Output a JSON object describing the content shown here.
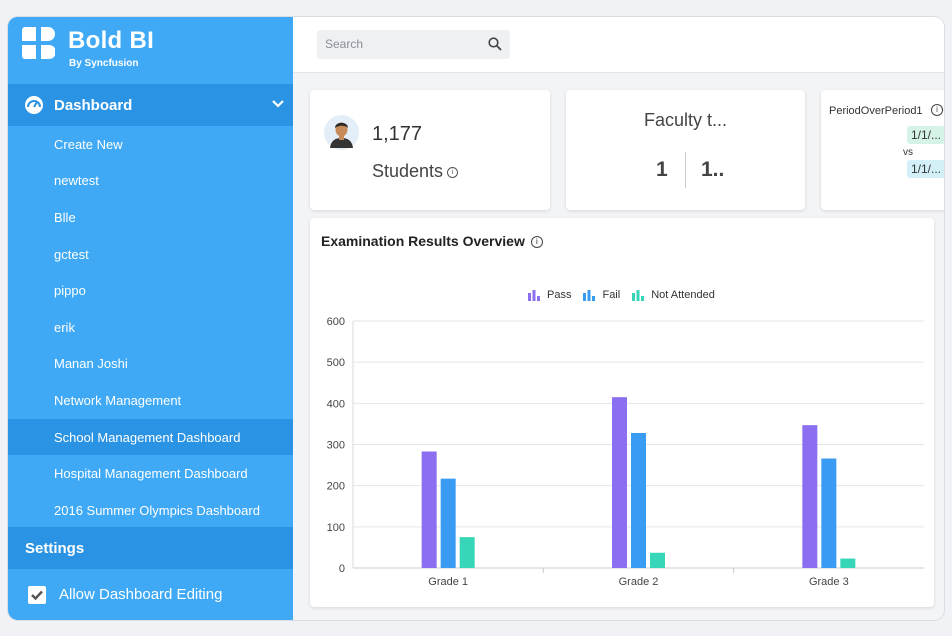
{
  "brand": {
    "name": "Bold BI",
    "sub": "By Syncfusion",
    "icon": "bold-bi-logo"
  },
  "sidebar": {
    "section": "Dashboard",
    "items": [
      {
        "label": "Create New",
        "active": false
      },
      {
        "label": "newtest",
        "active": false
      },
      {
        "label": "Blle",
        "active": false
      },
      {
        "label": "gctest",
        "active": false
      },
      {
        "label": "pippo",
        "active": false
      },
      {
        "label": "erik",
        "active": false
      },
      {
        "label": "Manan Joshi",
        "active": false
      },
      {
        "label": "Network Management",
        "active": false
      },
      {
        "label": "School Management Dashboard",
        "active": true
      },
      {
        "label": "Hospital Management Dashboard",
        "active": false
      },
      {
        "label": "2016 Summer Olympics Dashboard",
        "active": false
      }
    ],
    "settings": "Settings",
    "allow_editing": {
      "label": "Allow Dashboard Editing",
      "checked": true
    }
  },
  "search": {
    "placeholder": "Search"
  },
  "kpi_students": {
    "value": "1,177",
    "label": "Students"
  },
  "kpi_faculty": {
    "title": "Faculty t...",
    "value_a": "1",
    "value_b": "1.."
  },
  "kpi_period": {
    "title": "PeriodOverPeriod1",
    "value_1": "1/1/...",
    "vs": "vs",
    "value_2": "1/1/..."
  },
  "colors": {
    "sidebar": "#3fa9f5",
    "sidebar_active": "#2b93e3",
    "pass": "#8b6ff0",
    "fail": "#3a9bf2",
    "not_attended": "#37d6b8"
  },
  "chart_data": {
    "type": "bar",
    "title": "Examination Results Overview",
    "categories": [
      "Grade 1",
      "Grade 2",
      "Grade 3"
    ],
    "series": [
      {
        "name": "Pass",
        "values": [
          283,
          415,
          347
        ]
      },
      {
        "name": "Fail",
        "values": [
          217,
          328,
          266
        ]
      },
      {
        "name": "Not Attended",
        "values": [
          75,
          37,
          23
        ]
      }
    ],
    "yticks": [
      0,
      100,
      200,
      300,
      400,
      500,
      600
    ],
    "ylim": [
      0,
      600
    ],
    "grid": true,
    "legend": "top-center"
  }
}
